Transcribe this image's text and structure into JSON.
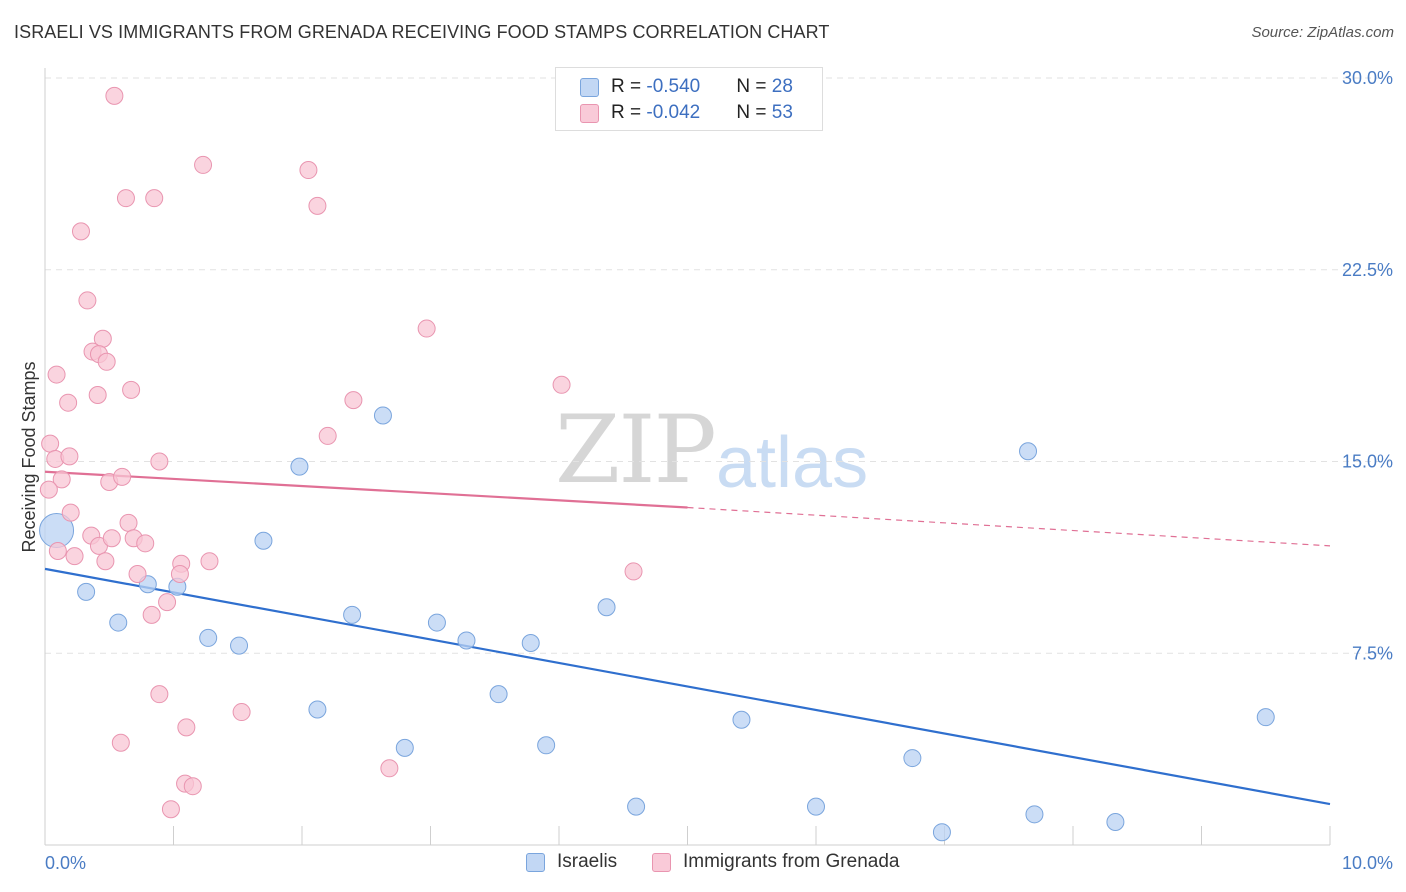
{
  "header": {
    "title": "ISRAELI VS IMMIGRANTS FROM GRENADA RECEIVING FOOD STAMPS CORRELATION CHART",
    "source": "Source: ZipAtlas.com"
  },
  "watermark": {
    "zip": "ZIP",
    "atlas": "atlas"
  },
  "legend": {
    "rows": [
      {
        "r_label": "R = ",
        "r_value": "-0.540",
        "n_label": "N = ",
        "n_value": "28",
        "color": "#aeccf2"
      },
      {
        "r_label": "R = ",
        "r_value": "-0.042",
        "n_label": "N = ",
        "n_value": "53",
        "color": "#f7b9cc"
      }
    ]
  },
  "bottom_legend": {
    "israelis": "Israelis",
    "grenada": "Immigrants from Grenada"
  },
  "colors": {
    "israelis_fill": "#b9d2f3",
    "israelis_stroke": "#7aa5dd",
    "israelis_line": "#2f6fce",
    "grenada_fill": "#f8c5d4",
    "grenada_stroke": "#e995b0",
    "grenada_line": "#e07095",
    "grid": "#e2e2e2",
    "axis_label": "#4a7cc4"
  },
  "chart_data": {
    "type": "scatter",
    "title": "ISRAELI VS IMMIGRANTS FROM GRENADA RECEIVING FOOD STAMPS CORRELATION CHART",
    "xlabel": "",
    "ylabel": "Receiving Food Stamps",
    "xlim": [
      0,
      10
    ],
    "ylim": [
      0,
      30
    ],
    "x_tick_labels": [
      "0.0%",
      "10.0%"
    ],
    "y_ticks": [
      7.5,
      15.0,
      22.5,
      30.0
    ],
    "y_tick_labels": [
      "7.5%",
      "15.0%",
      "22.5%",
      "30.0%"
    ],
    "grid": true,
    "series": [
      {
        "name": "Israelis",
        "R": -0.54,
        "N": 28,
        "points": [
          [
            0.09,
            12.3
          ],
          [
            0.32,
            9.9
          ],
          [
            0.57,
            8.7
          ],
          [
            0.8,
            10.2
          ],
          [
            1.03,
            10.1
          ],
          [
            1.27,
            8.1
          ],
          [
            1.51,
            7.8
          ],
          [
            1.7,
            11.9
          ],
          [
            1.98,
            14.8
          ],
          [
            2.12,
            5.3
          ],
          [
            2.39,
            9.0
          ],
          [
            2.63,
            16.8
          ],
          [
            2.8,
            3.8
          ],
          [
            3.05,
            8.7
          ],
          [
            3.28,
            8.0
          ],
          [
            3.53,
            5.9
          ],
          [
            3.78,
            7.9
          ],
          [
            3.9,
            3.9
          ],
          [
            4.37,
            9.3
          ],
          [
            4.6,
            1.5
          ],
          [
            5.42,
            4.9
          ],
          [
            6.0,
            1.5
          ],
          [
            6.75,
            3.4
          ],
          [
            6.98,
            0.5
          ],
          [
            7.65,
            15.4
          ],
          [
            7.7,
            1.2
          ],
          [
            8.33,
            0.9
          ],
          [
            9.5,
            5.0
          ]
        ],
        "trend": {
          "x": [
            0,
            10
          ],
          "y": [
            10.8,
            1.6
          ]
        }
      },
      {
        "name": "Immigrants from Grenada",
        "R": -0.042,
        "N": 53,
        "points": [
          [
            0.54,
            29.3
          ],
          [
            0.63,
            25.3
          ],
          [
            0.85,
            25.3
          ],
          [
            0.28,
            24.0
          ],
          [
            0.33,
            21.3
          ],
          [
            0.45,
            19.8
          ],
          [
            0.37,
            19.3
          ],
          [
            0.42,
            19.2
          ],
          [
            0.48,
            18.9
          ],
          [
            0.09,
            18.4
          ],
          [
            0.67,
            17.8
          ],
          [
            0.18,
            17.3
          ],
          [
            0.41,
            17.6
          ],
          [
            0.04,
            15.7
          ],
          [
            0.08,
            15.1
          ],
          [
            0.19,
            15.2
          ],
          [
            0.89,
            15.0
          ],
          [
            0.13,
            14.3
          ],
          [
            0.03,
            13.9
          ],
          [
            0.5,
            14.2
          ],
          [
            0.6,
            14.4
          ],
          [
            0.2,
            13.0
          ],
          [
            0.65,
            12.6
          ],
          [
            0.36,
            12.1
          ],
          [
            0.42,
            11.7
          ],
          [
            0.52,
            12.0
          ],
          [
            0.69,
            12.0
          ],
          [
            0.1,
            11.5
          ],
          [
            0.23,
            11.3
          ],
          [
            0.47,
            11.1
          ],
          [
            0.78,
            11.8
          ],
          [
            1.06,
            11.0
          ],
          [
            1.28,
            11.1
          ],
          [
            1.05,
            10.6
          ],
          [
            0.72,
            10.6
          ],
          [
            0.95,
            9.5
          ],
          [
            0.83,
            9.0
          ],
          [
            0.89,
            5.9
          ],
          [
            1.1,
            4.6
          ],
          [
            0.59,
            4.0
          ],
          [
            1.53,
            5.2
          ],
          [
            1.09,
            2.4
          ],
          [
            1.15,
            2.3
          ],
          [
            0.98,
            1.4
          ],
          [
            2.05,
            26.4
          ],
          [
            2.12,
            25.0
          ],
          [
            2.2,
            16.0
          ],
          [
            2.4,
            17.4
          ],
          [
            2.68,
            3.0
          ],
          [
            2.97,
            20.2
          ],
          [
            4.02,
            18.0
          ],
          [
            4.58,
            10.7
          ],
          [
            1.23,
            26.6
          ]
        ],
        "trend": {
          "x": [
            0,
            5.0
          ],
          "y": [
            14.6,
            13.2
          ]
        },
        "trend_extension": {
          "x": [
            5.0,
            10
          ],
          "y": [
            13.2,
            11.7
          ]
        }
      }
    ]
  }
}
